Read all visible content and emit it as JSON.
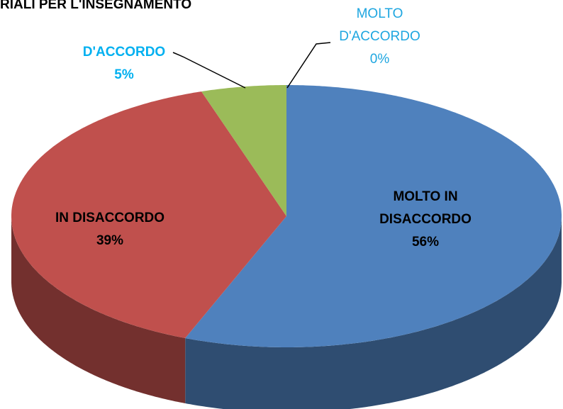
{
  "chart_data": {
    "type": "pie",
    "title": "RIALI PER L'INSEGNAMENTO",
    "categories": [
      "MOLTO IN DISACCORDO",
      "IN DISACCORDO",
      "D'ACCORDO",
      "MOLTO D'ACCORDO"
    ],
    "values": [
      56,
      39,
      5,
      0
    ],
    "value_labels": [
      "56%",
      "39%",
      "5%",
      "0%"
    ],
    "colors": [
      "#4f81bd",
      "#c0504d",
      "#9bbb59",
      "#8064a2"
    ]
  }
}
